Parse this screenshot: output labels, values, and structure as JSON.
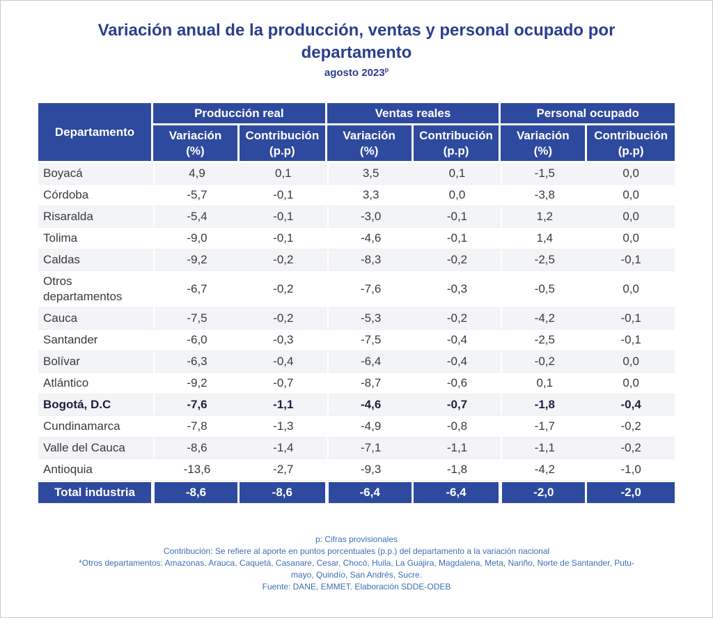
{
  "title": "Variación anual de la producción, ventas y personal ocupado por departamento",
  "subtitle": "agosto 2023",
  "subtitle_sup": "p",
  "header": {
    "departamento": "Departamento",
    "groups": [
      "Producción real",
      "Ventas reales",
      "Personal ocupado"
    ],
    "variacion_line1": "Variación",
    "variacion_line2": "(%)",
    "contribucion_line1": "Contribución",
    "contribucion_line2": "(p.p)"
  },
  "rows": [
    {
      "name": "Boyacá",
      "values": [
        "4,9",
        "0,1",
        "3,5",
        "0,1",
        "-1,5",
        "0,0"
      ]
    },
    {
      "name": "Córdoba",
      "values": [
        "-5,7",
        "-0,1",
        "3,3",
        "0,0",
        "-3,8",
        "0,0"
      ]
    },
    {
      "name": "Risaralda",
      "values": [
        "-5,4",
        "-0,1",
        "-3,0",
        "-0,1",
        "1,2",
        "0,0"
      ]
    },
    {
      "name": "Tolima",
      "values": [
        "-9,0",
        "-0,1",
        "-4,6",
        "-0,1",
        "1,4",
        "0,0"
      ]
    },
    {
      "name": "Caldas",
      "values": [
        "-9,2",
        "-0,2",
        "-8,3",
        "-0,2",
        "-2,5",
        "-0,1"
      ]
    },
    {
      "name_line1": "Otros",
      "name_line2": "departamentos",
      "values": [
        "-6,7",
        "-0,2",
        "-7,6",
        "-0,3",
        "-0,5",
        "0,0"
      ]
    },
    {
      "name": "Cauca",
      "values": [
        "-7,5",
        "-0,2",
        "-5,3",
        "-0,2",
        "-4,2",
        "-0,1"
      ]
    },
    {
      "name": "Santander",
      "values": [
        "-6,0",
        "-0,3",
        "-7,5",
        "-0,4",
        "-2,5",
        "-0,1"
      ]
    },
    {
      "name": "Bolívar",
      "values": [
        "-6,3",
        "-0,4",
        "-6,4",
        "-0,4",
        "-0,2",
        "0,0"
      ]
    },
    {
      "name": "Atlántico",
      "values": [
        "-9,2",
        "-0,7",
        "-8,7",
        "-0,6",
        "0,1",
        "0,0"
      ]
    },
    {
      "name": "Bogotá, D.C",
      "values": [
        "-7,6",
        "-1,1",
        "-4,6",
        "-0,7",
        "-1,8",
        "-0,4"
      ]
    },
    {
      "name": "Cundinamarca",
      "values": [
        "-7,8",
        "-1,3",
        "-4,9",
        "-0,8",
        "-1,7",
        "-0,2"
      ]
    },
    {
      "name": "Valle del Cauca",
      "values": [
        "-8,6",
        "-1,4",
        "-7,1",
        "-1,1",
        "-1,1",
        "-0,2"
      ]
    },
    {
      "name": "Antioquia",
      "values": [
        "-13,6",
        "-2,7",
        "-9,3",
        "-1,8",
        "-4,2",
        "-1,0"
      ]
    }
  ],
  "total": {
    "name": "Total industria",
    "values": [
      "-8,6",
      "-8,6",
      "-6,4",
      "-6,4",
      "-2,0",
      "-2,0"
    ]
  },
  "notes": [
    "p: Cifras provisionales",
    "Contribución: Se refiere al aporte en puntos porcentuales (p.p.) del departamento a la variación nacional",
    "*Otros departamentos: Amazonas, Arauca, Caquetá, Casanare, Cesar, Chocó, Huila, La Guajira, Magdalena, Meta, Nariño, Norte de Santander, Putu-",
    "mayo, Quindío, San Andrés, Sucre.",
    "Fuente: DANE, EMMET. Elaboración SDDE-ODEB"
  ]
}
